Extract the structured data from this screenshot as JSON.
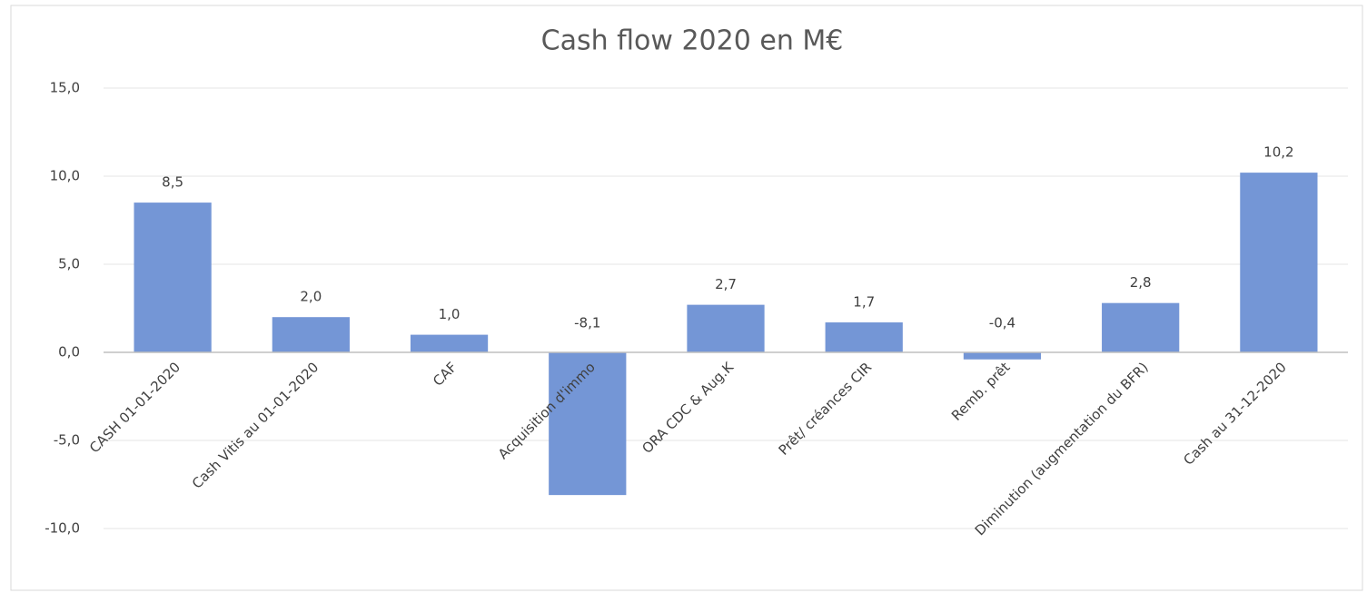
{
  "chart_data": {
    "type": "bar",
    "title": "Cash flow 2020 en M€",
    "categories": [
      "CASH  01-01-2020",
      "Cash Vitis au 01-01-2020",
      "CAF",
      "Acquisition d'immo",
      "ORA CDC & Aug.K",
      "Prêt/ créances CIR",
      "Remb. prêt",
      "Diminution (augmentation du BFR)",
      "Cash au 31-12-2020"
    ],
    "values": [
      8.5,
      2.0,
      1.0,
      -8.1,
      2.7,
      1.7,
      -0.4,
      2.8,
      10.2
    ],
    "value_labels": [
      "8,5",
      "2,0",
      "1,0",
      "-8,1",
      "2,7",
      "1,7",
      "-0,4",
      "2,8",
      "10,2"
    ],
    "color": "#7496d6",
    "ylim": [
      -10,
      15
    ],
    "yticks": [
      {
        "value": -10,
        "label": "-10,0"
      },
      {
        "value": -5,
        "label": "-5,0"
      },
      {
        "value": 0,
        "label": "0,0"
      },
      {
        "value": 5,
        "label": "5,0"
      },
      {
        "value": 10,
        "label": "10,0"
      },
      {
        "value": 15,
        "label": "15,0"
      }
    ],
    "grid": true
  }
}
